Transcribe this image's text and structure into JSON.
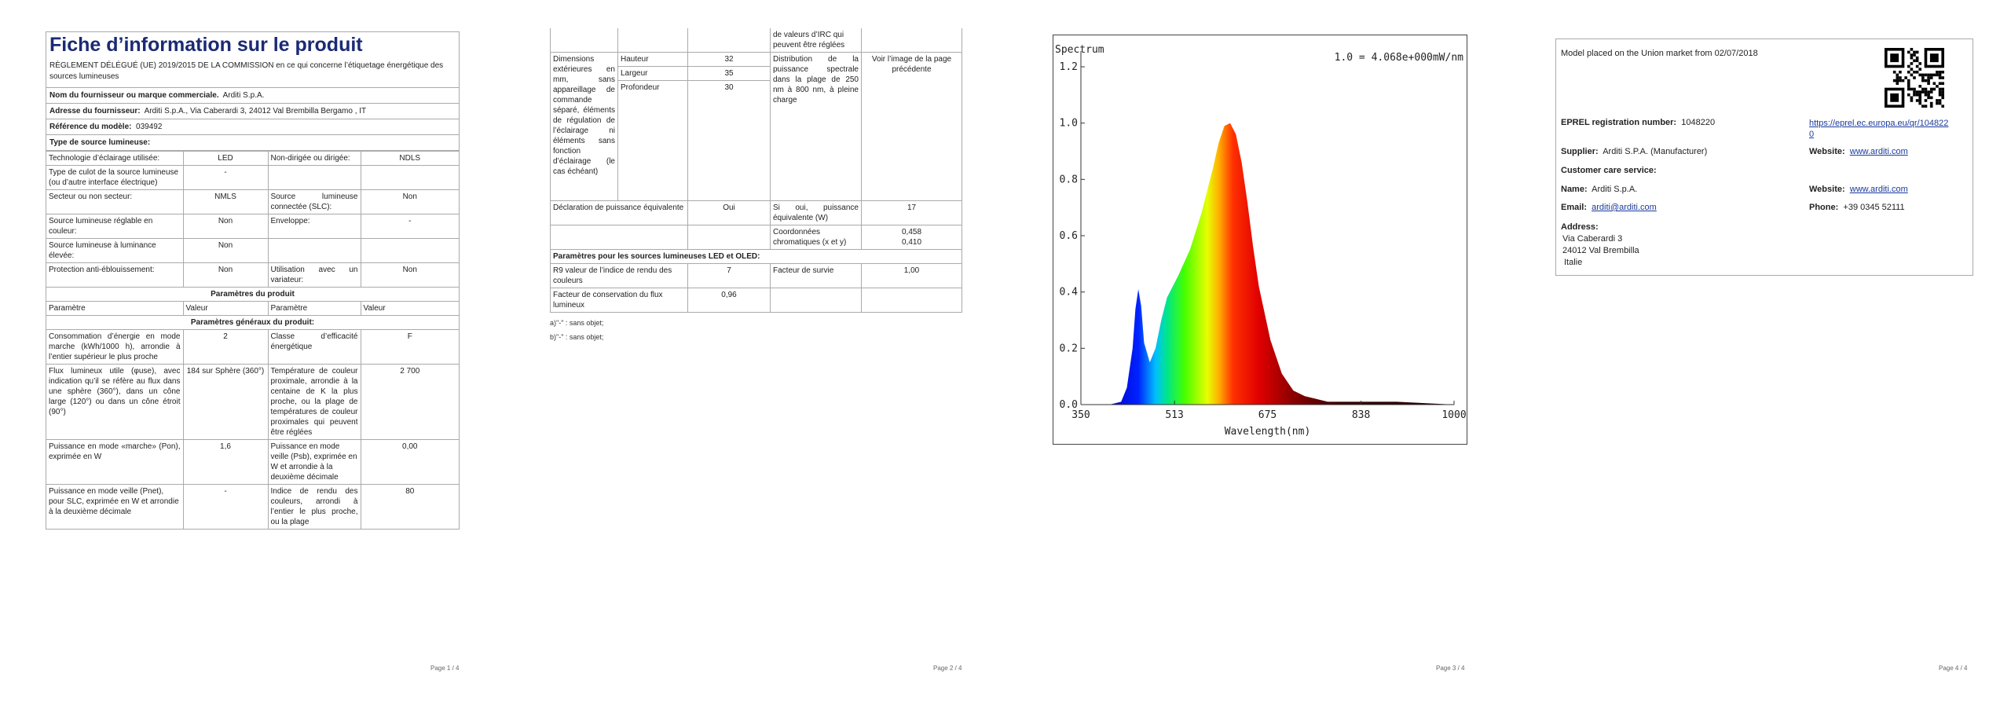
{
  "page1": {
    "title": "Fiche d’information sur le produit",
    "subtitle": "RÈGLEMENT DÉLÉGUÉ (UE) 2019/2015 DE LA COMMISSION en ce qui concerne l’étiquetage énergétique des sources lumineuses",
    "supplier_label": "Nom du fournisseur ou marque commerciale.",
    "supplier_value": "Arditi S.p.A.",
    "address_label": "Adresse du fournisseur:",
    "address_value": "Arditi S.p.A., Via Caberardi 3, 24012 Val Brembilla Bergamo , IT",
    "model_label": "Référence du modèle:",
    "model_value": "039492",
    "source_type_label": "Type de source lumineuse:",
    "tech_label": "Technologie d’éclairage utilisée:",
    "tech_value": "LED",
    "nondir_label": "Non-dirigée ou dirigée:",
    "nondir_value": "NDLS",
    "cap_label": "Type de culot de la source lumineuse",
    "cap_label2": "(ou d’autre interface électrique)",
    "cap_value": "-",
    "mains_label": "Secteur ou non secteur:",
    "mains_value": "NMLS",
    "connected_label": "Source lumineuse connectée (SLC):",
    "connected_value": "Non",
    "tunable_label": "Source lumineuse réglable en couleur:",
    "tunable_value": "Non",
    "envelope_label": "Enveloppe:",
    "envelope_value": "-",
    "highlum_label": "Source lumineuse à luminance élevée:",
    "highlum_value": "Non",
    "antiglare_label": "Protection anti-éblouissement:",
    "antiglare_value": "Non",
    "dimmer_label": "Utilisation avec un variateur:",
    "dimmer_value": "Non",
    "product_params": "Paramètres du produit",
    "col_param": "Paramètre",
    "col_value": "Valeur",
    "general_params": "Paramètres généraux du produit:",
    "energy_label": "Consommation d’énergie en mode marche (kWh/1000 h), arrondie à l’entier supérieur le plus proche",
    "energy_value": "2",
    "class_label": "Classe d’efficacité énergétique",
    "class_value": "F",
    "flux_label": "Flux lumineux utile (φuse), avec indication qu’il se réfère au flux dans une sphère (360°), dans un cône large (120°) ou dans un cône étroit (90°)",
    "flux_value": "184 sur Sphère (360°)",
    "cct_label": "Température de couleur proximale, arrondie à la centaine de K la plus proche, ou la plage de températures de couleur proximales qui peuvent être réglées",
    "cct_value": "2 700",
    "pon_label": "Puissance en mode «marche» (Pon), exprimée en W",
    "pon_value": "1,6",
    "psb_label": "Puissance en mode veille (Psb), exprimée en W et arrondie à la deuxième décimale",
    "psb_value": "0,00",
    "pnet_label": "Puissance en mode veille (Pnet), pour SLC, exprimée en W et arrondie à la deuxième décimale",
    "pnet_value": "-",
    "cri_label": "Indice de rendu des couleurs, arrondi à l’entier le plus proche, ou la plage",
    "cri_value": "80",
    "page_num": "Page 1 / 4"
  },
  "page2": {
    "cri_cont": "de valeurs d’IRC qui peuvent être réglées",
    "dims_label": "Dimensions extérieures en mm, sans appareillage de commande séparé, éléments de régulation de l’éclairage ni éléments sans fonction d’éclairage (le cas échéant)",
    "height_label": "Hauteur",
    "height_value": "32",
    "width_label": "Largeur",
    "width_value": "35",
    "depth_label": "Profondeur",
    "depth_value": "30",
    "spd_label": "Distribution de la puissance spectrale dans la plage de 250 nm à 800 nm, à pleine charge",
    "spd_value": "Voir l’image de la page précédente",
    "equiv_label": "Déclaration de puissance équivalente",
    "equiv_value": "Oui",
    "equiv_power_label": "Si oui, puissance équivalente (W)",
    "equiv_power_value": "17",
    "chroma_label": "Coordonnées chromatiques (x et y)",
    "chroma_x": "0,458",
    "chroma_y": "0,410",
    "led_params": "Paramètres pour les sources lumineuses LED et OLED:",
    "r9_label": "R9 valeur de l’indice de rendu des couleurs",
    "r9_value": "7",
    "survival_label": "Facteur de survie",
    "survival_value": "1,00",
    "maint_label": "Facteur de conservation du flux lumineux",
    "maint_value": "0,96",
    "fn_a": "a)\"-\" : sans objet;",
    "fn_b": "b)\"-\" : sans objet;",
    "page_num": "Page 2 / 4"
  },
  "page3": {
    "page_num": "Page 3 / 4"
  },
  "chart_data": {
    "type": "area",
    "title": "Spectrum",
    "annotation": "1.0 = 4.068e+000mW/nm",
    "xlabel": "Wavelength(nm)",
    "ylabel": "",
    "xlim": [
      350,
      1000
    ],
    "ylim": [
      0,
      1.2
    ],
    "x_ticks": [
      "350",
      "513",
      "675",
      "838",
      "1000"
    ],
    "y_ticks": [
      "0.0",
      "0.2",
      "0.4",
      "0.6",
      "0.8",
      "1.0",
      "1.2"
    ],
    "grid": false,
    "x": [
      400,
      420,
      430,
      440,
      445,
      450,
      455,
      460,
      470,
      480,
      490,
      500,
      520,
      540,
      560,
      580,
      590,
      600,
      610,
      620,
      630,
      640,
      650,
      660,
      680,
      700,
      720,
      740,
      760,
      780,
      800,
      850,
      900,
      1000
    ],
    "values": [
      0.0,
      0.01,
      0.06,
      0.2,
      0.34,
      0.41,
      0.35,
      0.22,
      0.15,
      0.2,
      0.3,
      0.38,
      0.46,
      0.55,
      0.68,
      0.84,
      0.93,
      0.99,
      1.0,
      0.96,
      0.86,
      0.72,
      0.56,
      0.42,
      0.23,
      0.11,
      0.05,
      0.03,
      0.02,
      0.01,
      0.01,
      0.01,
      0.01,
      0.0
    ]
  },
  "page4": {
    "market_text": "Model placed on the Union market from 02/07/2018",
    "eprel_label": "EPREL registration number:",
    "eprel_value": "1048220",
    "eprel_link": "https://eprel.ec.europa.eu/qr/1048220",
    "supplier_label": "Supplier:",
    "supplier_value": "Arditi S.P.A. (Manufacturer)",
    "website_label": "Website:",
    "website_value": "www.arditi.com",
    "care_label": "Customer care service:",
    "name_label": "Name:",
    "name_value": "Arditi S.p.A.",
    "website2_label": "Website:",
    "website2_value": "www.arditi.com",
    "email_label": "Email:",
    "email_value": "arditi@arditi.com",
    "phone_label": "Phone:",
    "phone_value": "+39 0345 52111",
    "address_label": "Address:",
    "address_line1": "Via Caberardi 3",
    "address_line2": "24012  Val Brembilla",
    "address_line3": "Italie",
    "page_num": "Page 4 / 4"
  }
}
